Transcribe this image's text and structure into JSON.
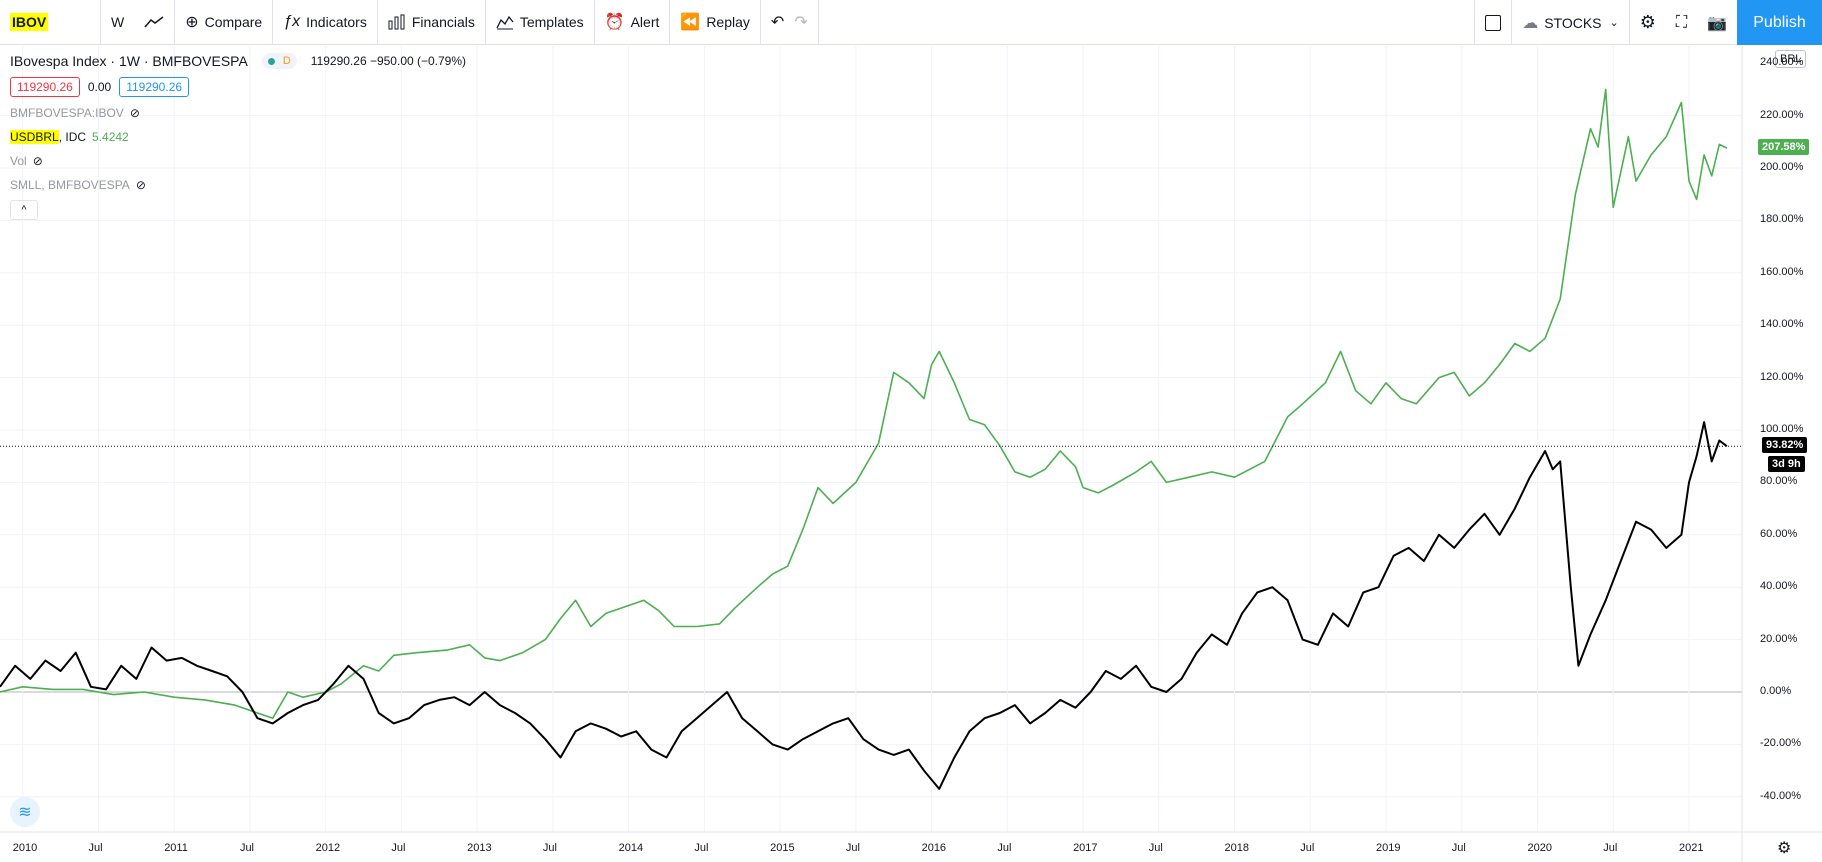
{
  "toolbar": {
    "symbol": "IBOV",
    "interval": "W",
    "compare": "Compare",
    "indicators": "Indicators",
    "financials": "Financials",
    "templates": "Templates",
    "alert": "Alert",
    "replay": "Replay",
    "layout_name": "STOCKS",
    "publish": "Publish"
  },
  "legend": {
    "main_title": "IBovespa Index · 1W · BMFBOVESPA",
    "main_dot_label": "D",
    "main_values": "119290.26 −950.00 (−0.79%)",
    "bid": "119290.26",
    "spread": "0.00",
    "ask": "119290.26",
    "compare1": "BMFBOVESPA:IBOV",
    "compare2_symbol": "USDBRL",
    "compare2_exchange": ", IDC",
    "compare2_value": "5.4242",
    "vol": "Vol",
    "compare3": "SMLL, BMFBOVESPA",
    "collapse": "^"
  },
  "currency_button": "BRL",
  "price_axis": {
    "ticks": [
      "220.00%",
      "200.00%",
      "180.00%",
      "160.00%",
      "140.00%",
      "120.00%",
      "100.00%",
      "80.00%",
      "60.00%",
      "40.00%",
      "20.00%",
      "0.00%",
      "-20.00%",
      "-40.00%"
    ],
    "top_partial": "240.00%"
  },
  "time_axis": {
    "ticks": [
      "2010",
      "Jul",
      "2011",
      "Jul",
      "2012",
      "Jul",
      "2013",
      "Jul",
      "2014",
      "Jul",
      "2015",
      "Jul",
      "2016",
      "Jul",
      "2017",
      "Jul",
      "2018",
      "Jul",
      "2019",
      "Jul",
      "2020",
      "Jul",
      "2021"
    ]
  },
  "badges": {
    "usdbrl_last": "207.58%",
    "ibov_last": "93.82%",
    "countdown": "3d 9h"
  },
  "colors": {
    "usdbrl": "#4caf50",
    "ibov": "#000000",
    "accent": "#2196f3",
    "grid": "#f0f3fa"
  },
  "chart_data": {
    "type": "line",
    "ylabel": "",
    "ylim": [
      -50,
      245
    ],
    "x_range": [
      "2009-11",
      "2021-03"
    ],
    "series": [
      {
        "name": "USDBRL",
        "points": [
          [
            2009.85,
            0
          ],
          [
            2010.0,
            2
          ],
          [
            2010.2,
            1
          ],
          [
            2010.4,
            1
          ],
          [
            2010.6,
            -1
          ],
          [
            2010.8,
            0
          ],
          [
            2011.0,
            -2
          ],
          [
            2011.2,
            -3
          ],
          [
            2011.4,
            -5
          ],
          [
            2011.55,
            -8
          ],
          [
            2011.65,
            -10
          ],
          [
            2011.75,
            0
          ],
          [
            2011.85,
            -2
          ],
          [
            2012.0,
            0
          ],
          [
            2012.1,
            3
          ],
          [
            2012.25,
            10
          ],
          [
            2012.35,
            8
          ],
          [
            2012.45,
            14
          ],
          [
            2012.6,
            15
          ],
          [
            2012.8,
            16
          ],
          [
            2012.95,
            18
          ],
          [
            2013.05,
            13
          ],
          [
            2013.15,
            12
          ],
          [
            2013.3,
            15
          ],
          [
            2013.45,
            20
          ],
          [
            2013.55,
            28
          ],
          [
            2013.65,
            35
          ],
          [
            2013.75,
            25
          ],
          [
            2013.85,
            30
          ],
          [
            2014.0,
            33
          ],
          [
            2014.1,
            35
          ],
          [
            2014.2,
            31
          ],
          [
            2014.3,
            25
          ],
          [
            2014.45,
            25
          ],
          [
            2014.6,
            26
          ],
          [
            2014.7,
            32
          ],
          [
            2014.85,
            40
          ],
          [
            2014.95,
            45
          ],
          [
            2015.05,
            48
          ],
          [
            2015.15,
            62
          ],
          [
            2015.25,
            78
          ],
          [
            2015.35,
            72
          ],
          [
            2015.5,
            80
          ],
          [
            2015.65,
            95
          ],
          [
            2015.75,
            122
          ],
          [
            2015.85,
            118
          ],
          [
            2015.95,
            112
          ],
          [
            2016.0,
            125
          ],
          [
            2016.05,
            130
          ],
          [
            2016.15,
            118
          ],
          [
            2016.25,
            104
          ],
          [
            2016.35,
            102
          ],
          [
            2016.45,
            94
          ],
          [
            2016.55,
            84
          ],
          [
            2016.65,
            82
          ],
          [
            2016.75,
            85
          ],
          [
            2016.85,
            92
          ],
          [
            2016.95,
            86
          ],
          [
            2017.0,
            78
          ],
          [
            2017.1,
            76
          ],
          [
            2017.2,
            79
          ],
          [
            2017.35,
            84
          ],
          [
            2017.45,
            88
          ],
          [
            2017.55,
            80
          ],
          [
            2017.7,
            82
          ],
          [
            2017.85,
            84
          ],
          [
            2018.0,
            82
          ],
          [
            2018.1,
            85
          ],
          [
            2018.2,
            88
          ],
          [
            2018.35,
            105
          ],
          [
            2018.45,
            110
          ],
          [
            2018.6,
            118
          ],
          [
            2018.7,
            130
          ],
          [
            2018.8,
            115
          ],
          [
            2018.9,
            110
          ],
          [
            2019.0,
            118
          ],
          [
            2019.1,
            112
          ],
          [
            2019.2,
            110
          ],
          [
            2019.35,
            120
          ],
          [
            2019.45,
            122
          ],
          [
            2019.55,
            113
          ],
          [
            2019.65,
            118
          ],
          [
            2019.75,
            125
          ],
          [
            2019.85,
            133
          ],
          [
            2019.95,
            130
          ],
          [
            2020.05,
            135
          ],
          [
            2020.15,
            150
          ],
          [
            2020.25,
            190
          ],
          [
            2020.35,
            215
          ],
          [
            2020.4,
            208
          ],
          [
            2020.45,
            230
          ],
          [
            2020.5,
            185
          ],
          [
            2020.6,
            212
          ],
          [
            2020.65,
            195
          ],
          [
            2020.75,
            205
          ],
          [
            2020.85,
            212
          ],
          [
            2020.95,
            225
          ],
          [
            2021.0,
            195
          ],
          [
            2021.05,
            188
          ],
          [
            2021.1,
            205
          ],
          [
            2021.15,
            197
          ],
          [
            2021.2,
            209
          ],
          [
            2021.25,
            207.58
          ]
        ]
      },
      {
        "name": "IBOV",
        "points": [
          [
            2009.85,
            2
          ],
          [
            2009.95,
            10
          ],
          [
            2010.05,
            5
          ],
          [
            2010.15,
            12
          ],
          [
            2010.25,
            8
          ],
          [
            2010.35,
            15
          ],
          [
            2010.45,
            2
          ],
          [
            2010.55,
            1
          ],
          [
            2010.65,
            10
          ],
          [
            2010.75,
            5
          ],
          [
            2010.85,
            17
          ],
          [
            2010.95,
            12
          ],
          [
            2011.05,
            13
          ],
          [
            2011.15,
            10
          ],
          [
            2011.25,
            8
          ],
          [
            2011.35,
            6
          ],
          [
            2011.45,
            0
          ],
          [
            2011.55,
            -10
          ],
          [
            2011.65,
            -12
          ],
          [
            2011.75,
            -8
          ],
          [
            2011.85,
            -5
          ],
          [
            2011.95,
            -3
          ],
          [
            2012.05,
            3
          ],
          [
            2012.15,
            10
          ],
          [
            2012.25,
            5
          ],
          [
            2012.35,
            -8
          ],
          [
            2012.45,
            -12
          ],
          [
            2012.55,
            -10
          ],
          [
            2012.65,
            -5
          ],
          [
            2012.75,
            -3
          ],
          [
            2012.85,
            -2
          ],
          [
            2012.95,
            -5
          ],
          [
            2013.05,
            0
          ],
          [
            2013.15,
            -5
          ],
          [
            2013.25,
            -8
          ],
          [
            2013.35,
            -12
          ],
          [
            2013.45,
            -18
          ],
          [
            2013.55,
            -25
          ],
          [
            2013.65,
            -15
          ],
          [
            2013.75,
            -12
          ],
          [
            2013.85,
            -14
          ],
          [
            2013.95,
            -17
          ],
          [
            2014.05,
            -15
          ],
          [
            2014.15,
            -22
          ],
          [
            2014.25,
            -25
          ],
          [
            2014.35,
            -15
          ],
          [
            2014.45,
            -10
          ],
          [
            2014.55,
            -5
          ],
          [
            2014.65,
            0
          ],
          [
            2014.75,
            -10
          ],
          [
            2014.85,
            -15
          ],
          [
            2014.95,
            -20
          ],
          [
            2015.05,
            -22
          ],
          [
            2015.15,
            -18
          ],
          [
            2015.25,
            -15
          ],
          [
            2015.35,
            -12
          ],
          [
            2015.45,
            -10
          ],
          [
            2015.55,
            -18
          ],
          [
            2015.65,
            -22
          ],
          [
            2015.75,
            -24
          ],
          [
            2015.85,
            -22
          ],
          [
            2015.95,
            -30
          ],
          [
            2016.05,
            -37
          ],
          [
            2016.15,
            -25
          ],
          [
            2016.25,
            -15
          ],
          [
            2016.35,
            -10
          ],
          [
            2016.45,
            -8
          ],
          [
            2016.55,
            -5
          ],
          [
            2016.65,
            -12
          ],
          [
            2016.75,
            -8
          ],
          [
            2016.85,
            -3
          ],
          [
            2016.95,
            -6
          ],
          [
            2017.05,
            0
          ],
          [
            2017.15,
            8
          ],
          [
            2017.25,
            5
          ],
          [
            2017.35,
            10
          ],
          [
            2017.45,
            2
          ],
          [
            2017.55,
            0
          ],
          [
            2017.65,
            5
          ],
          [
            2017.75,
            15
          ],
          [
            2017.85,
            22
          ],
          [
            2017.95,
            18
          ],
          [
            2018.05,
            30
          ],
          [
            2018.15,
            38
          ],
          [
            2018.25,
            40
          ],
          [
            2018.35,
            35
          ],
          [
            2018.45,
            20
          ],
          [
            2018.55,
            18
          ],
          [
            2018.65,
            30
          ],
          [
            2018.75,
            25
          ],
          [
            2018.85,
            38
          ],
          [
            2018.95,
            40
          ],
          [
            2019.05,
            52
          ],
          [
            2019.15,
            55
          ],
          [
            2019.25,
            50
          ],
          [
            2019.35,
            60
          ],
          [
            2019.45,
            55
          ],
          [
            2019.55,
            62
          ],
          [
            2019.65,
            68
          ],
          [
            2019.75,
            60
          ],
          [
            2019.85,
            70
          ],
          [
            2019.95,
            82
          ],
          [
            2020.05,
            92
          ],
          [
            2020.1,
            85
          ],
          [
            2020.15,
            88
          ],
          [
            2020.22,
            40
          ],
          [
            2020.27,
            10
          ],
          [
            2020.35,
            22
          ],
          [
            2020.45,
            35
          ],
          [
            2020.55,
            50
          ],
          [
            2020.65,
            65
          ],
          [
            2020.75,
            62
          ],
          [
            2020.85,
            55
          ],
          [
            2020.95,
            60
          ],
          [
            2021.0,
            80
          ],
          [
            2021.05,
            90
          ],
          [
            2021.1,
            103
          ],
          [
            2021.15,
            88
          ],
          [
            2021.2,
            96
          ],
          [
            2021.25,
            93.82
          ]
        ]
      }
    ]
  }
}
